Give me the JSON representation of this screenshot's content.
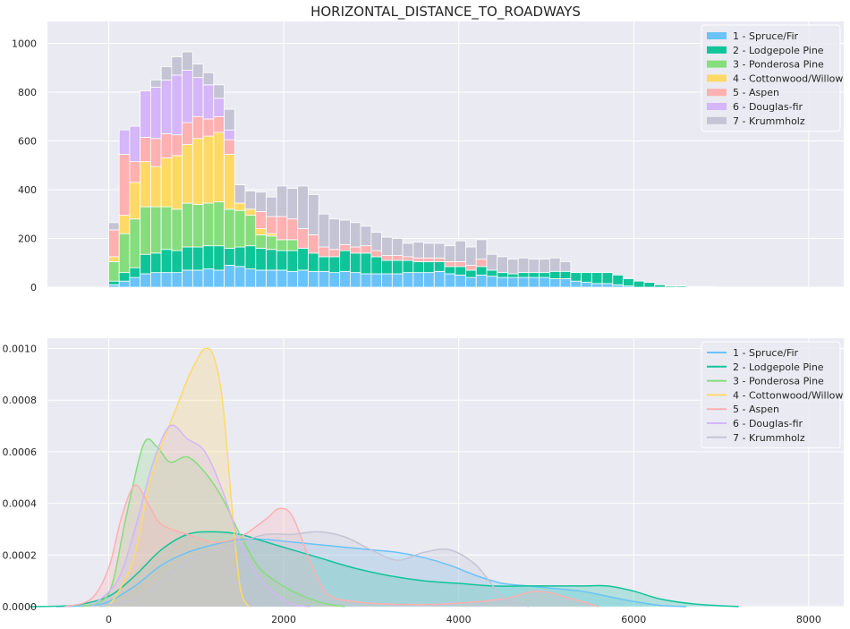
{
  "chart_data": [
    {
      "type": "bar",
      "stacked": true,
      "title": "HORIZONTAL_DISTANCE_TO_ROADWAYS",
      "xlim": [
        -700,
        8400
      ],
      "ylim": [
        0,
        1090
      ],
      "yticks": [
        0,
        200,
        400,
        600,
        800,
        1000
      ],
      "bin_width": 120,
      "bin_starts": [
        0,
        120,
        240,
        360,
        480,
        600,
        720,
        840,
        960,
        1080,
        1200,
        1320,
        1440,
        1560,
        1680,
        1800,
        1920,
        2040,
        2160,
        2280,
        2400,
        2520,
        2640,
        2760,
        2880,
        3000,
        3120,
        3240,
        3360,
        3480,
        3600,
        3720,
        3840,
        3960,
        4080,
        4200,
        4320,
        4440,
        4560,
        4680,
        4800,
        4920,
        5040,
        5160,
        5280,
        5400,
        5520,
        5640,
        5760,
        5880,
        6000,
        6120,
        6240,
        6360,
        6480,
        6600,
        6720,
        6840
      ],
      "grid": true,
      "legend_position": "top-right",
      "series": [
        {
          "name": "1 - Spruce/Fir",
          "color": "#6ac3f8",
          "values": [
            10,
            25,
            40,
            55,
            60,
            60,
            60,
            70,
            70,
            75,
            70,
            90,
            85,
            75,
            70,
            70,
            70,
            65,
            70,
            65,
            65,
            60,
            65,
            60,
            55,
            55,
            55,
            55,
            60,
            60,
            60,
            65,
            55,
            50,
            40,
            50,
            45,
            40,
            40,
            40,
            40,
            40,
            35,
            35,
            25,
            20,
            15,
            15,
            10,
            5,
            0,
            0,
            0,
            0,
            0,
            0,
            0,
            0
          ]
        },
        {
          "name": "2 - Lodgepole Pine",
          "color": "#10c49a",
          "values": [
            15,
            35,
            40,
            80,
            80,
            95,
            90,
            95,
            95,
            95,
            100,
            70,
            80,
            95,
            90,
            85,
            80,
            85,
            90,
            75,
            60,
            65,
            85,
            80,
            85,
            70,
            55,
            55,
            50,
            45,
            45,
            40,
            30,
            35,
            30,
            35,
            25,
            20,
            15,
            20,
            20,
            20,
            30,
            30,
            35,
            40,
            45,
            45,
            40,
            30,
            25,
            20,
            10,
            5,
            5,
            3,
            3,
            3
          ]
        },
        {
          "name": "3 - Ponderosa Pine",
          "color": "#86dd7e",
          "values": [
            80,
            160,
            200,
            195,
            190,
            175,
            170,
            180,
            175,
            175,
            180,
            160,
            150,
            125,
            55,
            55,
            45,
            45,
            0,
            0,
            0,
            0,
            0,
            0,
            0,
            0,
            0,
            0,
            0,
            0,
            0,
            0,
            0,
            0,
            0,
            0,
            0,
            0,
            0,
            0,
            0,
            0,
            0,
            0,
            0,
            0,
            0,
            0,
            0,
            0,
            0,
            0,
            0,
            0,
            0,
            0,
            0,
            0
          ]
        },
        {
          "name": "4 - Cottonwood/Willow",
          "color": "#ffd966",
          "values": [
            20,
            75,
            150,
            185,
            165,
            200,
            220,
            240,
            270,
            275,
            285,
            225,
            30,
            25,
            25,
            10,
            0,
            0,
            0,
            0,
            0,
            0,
            0,
            0,
            0,
            0,
            0,
            0,
            0,
            0,
            0,
            0,
            0,
            0,
            0,
            0,
            0,
            0,
            0,
            0,
            0,
            0,
            0,
            0,
            0,
            0,
            0,
            0,
            0,
            0,
            0,
            0,
            0,
            0,
            0,
            0,
            0,
            0
          ]
        },
        {
          "name": "5 - Aspen",
          "color": "#ffb0b0",
          "values": [
            110,
            250,
            85,
            100,
            115,
            100,
            85,
            90,
            90,
            70,
            65,
            60,
            0,
            0,
            70,
            70,
            95,
            85,
            80,
            75,
            40,
            30,
            25,
            25,
            30,
            25,
            20,
            20,
            15,
            15,
            15,
            15,
            20,
            20,
            20,
            30,
            0,
            0,
            0,
            0,
            0,
            0,
            0,
            0,
            0,
            0,
            0,
            0,
            0,
            0,
            0,
            0,
            0,
            0,
            0,
            0,
            0,
            0
          ]
        },
        {
          "name": "6 - Douglas-fir",
          "color": "#d4b6f9",
          "values": [
            0,
            100,
            145,
            190,
            210,
            220,
            245,
            215,
            160,
            140,
            75,
            40,
            0,
            0,
            0,
            0,
            0,
            0,
            0,
            0,
            0,
            0,
            0,
            0,
            0,
            0,
            0,
            0,
            0,
            0,
            0,
            0,
            0,
            0,
            0,
            0,
            0,
            0,
            0,
            0,
            0,
            0,
            0,
            0,
            0,
            0,
            0,
            0,
            0,
            0,
            0,
            0,
            0,
            0,
            0,
            0,
            0,
            0
          ]
        },
        {
          "name": "7 - Krummholz",
          "color": "#c4c4d4",
          "values": [
            30,
            0,
            0,
            0,
            30,
            55,
            75,
            75,
            55,
            50,
            55,
            85,
            75,
            75,
            80,
            80,
            125,
            125,
            175,
            165,
            135,
            125,
            100,
            100,
            80,
            75,
            75,
            70,
            55,
            65,
            60,
            60,
            65,
            85,
            75,
            80,
            65,
            65,
            60,
            60,
            55,
            55,
            55,
            40,
            0,
            0,
            0,
            0,
            0,
            0,
            0,
            0,
            0,
            0,
            0,
            0,
            0,
            0
          ]
        }
      ]
    },
    {
      "type": "area",
      "subtype": "kde",
      "xlim": [
        -700,
        8400
      ],
      "ylim": [
        0,
        0.00104
      ],
      "xticks": [
        0,
        2000,
        4000,
        6000,
        8000
      ],
      "yticks": [
        0.0,
        0.0002,
        0.0004,
        0.0006,
        0.0008,
        0.001
      ],
      "ytick_labels": [
        "0.0000",
        "0.0002",
        "0.0004",
        "0.0006",
        "0.0008",
        "0.0010"
      ],
      "grid": true,
      "legend_position": "top-right",
      "series": [
        {
          "name": "1 - Spruce/Fir",
          "color": "#6ac3f8",
          "x": [
            -600,
            -200,
            0,
            300,
            600,
            900,
            1200,
            1500,
            1800,
            2100,
            2400,
            2700,
            3000,
            3300,
            3600,
            3900,
            4200,
            4500,
            4800,
            5100,
            5400,
            5700,
            6000,
            6300,
            6600
          ],
          "y": [
            0,
            5e-06,
            2e-05,
            8e-05,
            0.00016,
            0.00021,
            0.00024,
            0.00026,
            0.00026,
            0.00025,
            0.00024,
            0.00023,
            0.00022,
            0.00021,
            0.00019,
            0.00016,
            0.00012,
            9e-05,
            8e-05,
            7e-05,
            6e-05,
            4e-05,
            2e-05,
            5e-06,
            0
          ]
        },
        {
          "name": "2 - Lodgepole Pine",
          "color": "#10c49a",
          "x": [
            -900,
            -400,
            0,
            300,
            600,
            900,
            1200,
            1500,
            1800,
            2100,
            2400,
            2800,
            3200,
            3600,
            4000,
            4400,
            4800,
            5100,
            5400,
            5700,
            6000,
            6300,
            6700,
            7200
          ],
          "y": [
            0,
            5e-06,
            4e-05,
            0.00012,
            0.00022,
            0.00028,
            0.00029,
            0.00028,
            0.00025,
            0.00022,
            0.00019,
            0.00015,
            0.00012,
            0.0001,
            9e-05,
            8e-05,
            8e-05,
            8e-05,
            8e-05,
            8e-05,
            6e-05,
            3e-05,
            1e-05,
            0
          ]
        },
        {
          "name": "3 - Ponderosa Pine",
          "color": "#86dd7e",
          "x": [
            -300,
            0,
            200,
            400,
            550,
            700,
            900,
            1100,
            1300,
            1500,
            1700,
            1900,
            2100,
            2300,
            2500,
            2700
          ],
          "y": [
            0,
            5e-05,
            0.00035,
            0.00063,
            0.00062,
            0.00056,
            0.00058,
            0.00052,
            0.00042,
            0.00028,
            0.00016,
            0.0001,
            6e-05,
            3e-05,
            1e-05,
            0
          ]
        },
        {
          "name": "4 - Cottonwood/Willow",
          "color": "#ffd966",
          "x": [
            0,
            150,
            300,
            450,
            600,
            750,
            900,
            1000,
            1100,
            1200,
            1300,
            1400,
            1500,
            1600
          ],
          "y": [
            0,
            8e-05,
            0.0002,
            0.00045,
            0.00062,
            0.00075,
            0.00088,
            0.00095,
            0.001,
            0.00097,
            0.0008,
            0.00042,
            8e-05,
            0
          ]
        },
        {
          "name": "5 - Aspen",
          "color": "#ffb0b0",
          "x": [
            -500,
            -200,
            0,
            150,
            300,
            450,
            600,
            900,
            1200,
            1500,
            1800,
            1950,
            2100,
            2300,
            2500,
            2800,
            3200,
            3800,
            4500,
            4900,
            5300,
            5600
          ],
          "y": [
            0,
            3e-05,
            0.00015,
            0.00035,
            0.00047,
            0.0004,
            0.00032,
            0.00028,
            0.00025,
            0.00027,
            0.00034,
            0.00038,
            0.00035,
            0.00018,
            5e-05,
            2e-05,
            1e-05,
            1e-05,
            3e-05,
            6e-05,
            3e-05,
            0
          ]
        },
        {
          "name": "6 - Douglas-fir",
          "color": "#d4b6f9",
          "x": [
            -200,
            100,
            300,
            500,
            700,
            900,
            1100,
            1300,
            1500,
            1700,
            1900,
            2100,
            2300
          ],
          "y": [
            0,
            0.0001,
            0.0003,
            0.00055,
            0.0007,
            0.00065,
            0.0006,
            0.00045,
            0.00025,
            0.00012,
            5e-05,
            1e-05,
            0
          ]
        },
        {
          "name": "7 - Krummholz",
          "color": "#c4c4d4",
          "x": [
            -100,
            300,
            600,
            900,
            1200,
            1500,
            1800,
            2100,
            2400,
            2700,
            3000,
            3300,
            3600,
            3900,
            4200,
            4500,
            4800
          ],
          "y": [
            0,
            3e-05,
            0.0001,
            0.00018,
            0.00022,
            0.00025,
            0.00028,
            0.00028,
            0.00029,
            0.00027,
            0.00022,
            0.00018,
            0.00021,
            0.00022,
            0.00016,
            4e-05,
            0
          ]
        }
      ]
    }
  ]
}
